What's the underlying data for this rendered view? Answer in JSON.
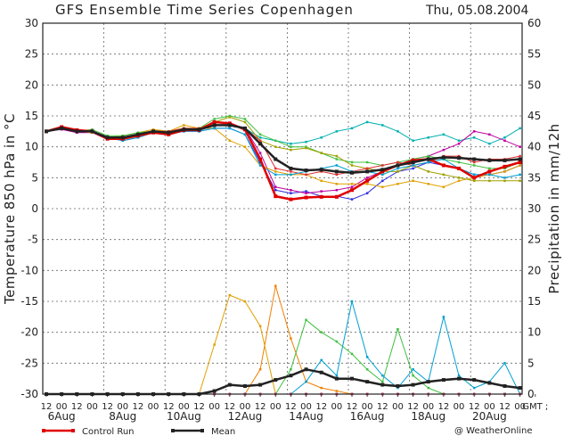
{
  "chart_data": {
    "type": "line",
    "title": "GFS Ensemble Time Series Copenhagen",
    "issue_date": "Thu, 05.08.2004",
    "ylabel": "Temperature 850 hPa in °C",
    "y2label": "Precipitation in mm/12h",
    "ylim": [
      -30,
      30
    ],
    "y2lim": [
      0,
      60
    ],
    "yticks": [
      30,
      25,
      20,
      15,
      10,
      5,
      0,
      -5,
      -10,
      -15,
      -20,
      -25,
      -30
    ],
    "y2ticks": [
      60,
      55,
      50,
      45,
      40,
      35,
      30,
      25,
      20,
      15,
      10,
      5,
      0
    ],
    "hour_labels": [
      "12",
      "00",
      "12",
      "00",
      "12",
      "00",
      "12",
      "00",
      "12",
      "00",
      "12",
      "00",
      "12",
      "00",
      "12",
      "00",
      "12",
      "00",
      "12",
      "00",
      "12",
      "00",
      "12",
      "00",
      "12",
      "00",
      "12",
      "00",
      "12",
      "00",
      "12",
      "00",
      "GMT ;"
    ],
    "date_labels": [
      "6Aug",
      "8Aug",
      "10Aug",
      "12Aug",
      "14Aug",
      "16Aug",
      "18Aug",
      "20Aug"
    ],
    "legend": {
      "control": "Control Run",
      "mean": "Mean"
    },
    "credit": "@ WeatherOnline",
    "grid": true,
    "mean_temp": [
      12.5,
      13.0,
      12.5,
      12.5,
      11.5,
      11.5,
      12.0,
      12.5,
      12.3,
      12.8,
      12.8,
      13.5,
      13.5,
      13.0,
      10.5,
      8.0,
      6.5,
      6.2,
      6.3,
      6.0,
      5.8,
      6.0,
      6.3,
      7.0,
      7.5,
      8.0,
      8.3,
      8.2,
      8.0,
      7.8,
      7.8,
      8.0
    ],
    "control_temp": [
      12.5,
      13.2,
      12.7,
      12.5,
      11.3,
      11.3,
      11.8,
      12.3,
      12.0,
      12.7,
      12.7,
      14.0,
      13.8,
      12.8,
      8.0,
      2.0,
      1.5,
      1.8,
      1.9,
      1.9,
      3.0,
      4.5,
      6.0,
      7.0,
      7.8,
      8.0,
      7.0,
      6.5,
      5.0,
      6.0,
      6.8,
      7.5
    ],
    "members_temp": [
      {
        "color": "#00b0b0",
        "values": [
          12.5,
          13.0,
          12.5,
          12.5,
          11.5,
          11.5,
          12.0,
          12.5,
          12.3,
          12.8,
          12.8,
          13.5,
          13.5,
          13.0,
          11.5,
          11.0,
          10.5,
          10.8,
          11.5,
          12.5,
          13.0,
          14.0,
          13.5,
          12.5,
          11.0,
          11.5,
          12.0,
          11.0,
          11.5,
          10.5,
          11.5,
          13.0
        ]
      },
      {
        "color": "#3030e0",
        "values": [
          12.5,
          13.0,
          12.5,
          12.5,
          11.5,
          11.0,
          11.5,
          12.3,
          12.0,
          12.5,
          12.5,
          13.0,
          13.0,
          12.0,
          7.5,
          3.0,
          2.5,
          2.8,
          2.0,
          2.0,
          1.5,
          2.5,
          4.5,
          6.0,
          6.5,
          7.5,
          7.0,
          6.5,
          5.5,
          5.5,
          6.0,
          7.0
        ]
      },
      {
        "color": "#c000a0",
        "values": [
          12.5,
          12.8,
          12.3,
          12.3,
          11.2,
          11.5,
          12.0,
          12.5,
          12.0,
          12.8,
          12.8,
          14.0,
          13.8,
          13.0,
          9.0,
          3.5,
          3.0,
          2.5,
          2.8,
          3.0,
          3.5,
          5.0,
          6.0,
          7.0,
          8.0,
          8.5,
          9.5,
          10.5,
          12.5,
          12.0,
          11.0,
          10.0
        ]
      },
      {
        "color": "#e0a000",
        "values": [
          12.5,
          13.0,
          12.5,
          12.3,
          11.5,
          11.8,
          12.3,
          12.8,
          12.5,
          13.5,
          13.0,
          13.0,
          11.0,
          10.0,
          7.0,
          6.0,
          5.5,
          5.5,
          4.5,
          4.0,
          4.0,
          4.0,
          3.5,
          4.0,
          4.5,
          4.0,
          3.5,
          4.5,
          5.0,
          5.5,
          6.0,
          7.0
        ]
      },
      {
        "color": "#40c040",
        "values": [
          12.5,
          13.0,
          12.5,
          12.8,
          11.8,
          11.8,
          12.3,
          12.5,
          12.5,
          13.0,
          13.0,
          14.5,
          15.0,
          14.5,
          12.0,
          11.0,
          10.0,
          10.0,
          9.0,
          8.0,
          7.5,
          7.5,
          7.0,
          7.5,
          8.0,
          8.5,
          8.0,
          7.5,
          7.0,
          6.5,
          6.5,
          7.5
        ]
      },
      {
        "color": "#a0a000",
        "values": [
          12.5,
          13.0,
          12.5,
          12.5,
          11.5,
          11.5,
          12.0,
          12.5,
          12.5,
          13.0,
          13.0,
          14.0,
          14.8,
          14.0,
          11.0,
          10.0,
          9.5,
          9.8,
          9.0,
          8.5,
          7.0,
          6.5,
          6.0,
          6.0,
          7.0,
          6.0,
          5.5,
          5.0,
          4.5,
          4.5,
          4.5,
          4.5
        ]
      },
      {
        "color": "#e03030",
        "values": [
          12.5,
          13.0,
          12.5,
          12.5,
          11.5,
          11.5,
          12.0,
          12.5,
          12.5,
          13.0,
          13.0,
          13.5,
          13.5,
          13.0,
          11.0,
          6.5,
          6.0,
          5.5,
          6.0,
          5.5,
          6.0,
          6.5,
          7.0,
          7.5,
          7.0,
          7.5,
          8.5,
          8.5,
          7.5,
          8.0,
          8.0,
          8.5
        ]
      },
      {
        "color": "#00a0d0",
        "values": [
          12.5,
          13.0,
          12.5,
          12.5,
          11.5,
          11.0,
          11.5,
          12.3,
          12.0,
          12.5,
          12.5,
          13.0,
          13.0,
          12.0,
          7.0,
          5.5,
          5.5,
          6.0,
          6.5,
          7.0,
          6.0,
          6.0,
          5.5,
          6.5,
          7.0,
          7.5,
          8.0,
          6.5,
          5.5,
          5.5,
          5.0,
          5.5
        ]
      }
    ],
    "mean_precip": [
      0,
      0,
      0,
      0,
      0,
      0,
      0,
      0,
      0,
      0,
      0,
      0.5,
      1.5,
      1.3,
      1.5,
      2.3,
      3.0,
      4.0,
      3.5,
      2.5,
      2.5,
      2.0,
      1.5,
      1.3,
      1.5,
      2.0,
      2.3,
      2.5,
      2.3,
      1.8,
      1.3,
      1.0
    ],
    "members_precip": [
      {
        "color": "#e0a000",
        "values": [
          0,
          0,
          0,
          0,
          0,
          0,
          0,
          0,
          0,
          0,
          0,
          8.0,
          16.0,
          15.0,
          11.0,
          0,
          0,
          0,
          0,
          0,
          0,
          0,
          0,
          0,
          0,
          0,
          0,
          0,
          0,
          0,
          0,
          0
        ]
      },
      {
        "color": "#f08000",
        "values": [
          0,
          0,
          0,
          0,
          0,
          0,
          0,
          0,
          0,
          0,
          0,
          0,
          0,
          0,
          4.0,
          17.5,
          9.0,
          2.0,
          1.0,
          0.5,
          0,
          0,
          0,
          0,
          0,
          0,
          0,
          0,
          0,
          0,
          0,
          0
        ]
      },
      {
        "color": "#40c040",
        "values": [
          0,
          0,
          0,
          0,
          0,
          0,
          0,
          0,
          0,
          0,
          0,
          0,
          0,
          0,
          0,
          0,
          4.0,
          12.0,
          10.0,
          8.5,
          6.5,
          4.0,
          2.0,
          10.5,
          3.0,
          1.0,
          0,
          0,
          0,
          0,
          0,
          0
        ]
      },
      {
        "color": "#00a0d0",
        "values": [
          0,
          0,
          0,
          0,
          0,
          0,
          0,
          0,
          0,
          0,
          0,
          0,
          0,
          0,
          0,
          0,
          0,
          2.0,
          5.5,
          3.0,
          15.0,
          6.0,
          3.0,
          1.0,
          4.0,
          2.0,
          12.5,
          3.0,
          1.0,
          2.0,
          5.0,
          0
        ]
      },
      {
        "color": "#c000a0",
        "values": [
          0,
          0,
          0,
          0,
          0,
          0,
          0,
          0,
          0,
          0,
          0,
          0,
          0,
          0,
          0,
          0,
          0,
          0,
          0,
          0,
          0,
          0,
          0,
          0,
          0,
          0,
          0,
          0,
          0,
          0,
          0,
          0
        ]
      },
      {
        "color": "#00b0b0",
        "values": [
          0,
          0,
          0,
          0,
          0,
          0,
          0,
          0,
          0,
          0,
          0,
          0,
          0,
          0,
          0,
          0,
          0,
          0,
          0,
          0,
          0,
          0,
          0,
          0,
          0,
          0,
          0,
          0,
          0,
          0,
          0,
          0
        ]
      },
      {
        "color": "#3030e0",
        "values": [
          0,
          0,
          0,
          0,
          0,
          0,
          0,
          0,
          0,
          0,
          0,
          0,
          0,
          0,
          0,
          0,
          0,
          0,
          0,
          0,
          0,
          0,
          0,
          0,
          0,
          0,
          0,
          0,
          0,
          0,
          0,
          0
        ]
      },
      {
        "color": "#e03030",
        "values": [
          0,
          0,
          0,
          0,
          0,
          0,
          0,
          0,
          0,
          0,
          0,
          0,
          0,
          0,
          0,
          0,
          0,
          0,
          0,
          0,
          0,
          0,
          0,
          0,
          0,
          0,
          0,
          0,
          0,
          0,
          0,
          0
        ]
      }
    ],
    "colors": {
      "control": "#e00000",
      "mean": "#222222",
      "grid": "#666666"
    }
  }
}
